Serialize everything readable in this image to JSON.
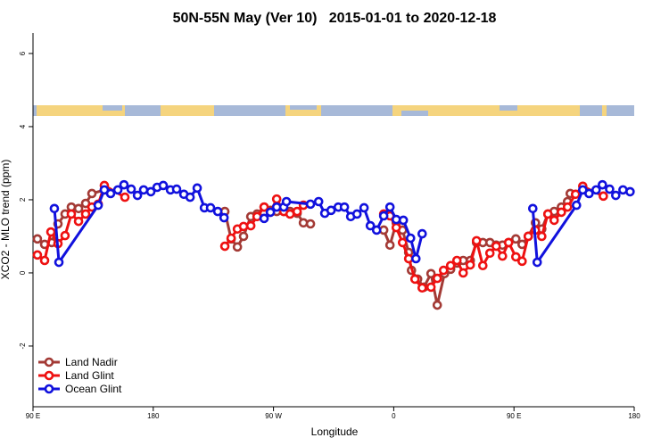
{
  "chart_data": {
    "type": "line",
    "title": "50N-55N May (Ver 10)   2015-01-01 to 2020-12-18",
    "x_label": "Longitude",
    "y_label": "XCO2 - MLO trend (ppm)",
    "xlim": [
      90,
      540
    ],
    "xticks": [
      {
        "value": 90,
        "label": "90 E"
      },
      180,
      {
        "value": 270,
        "label": "90 W"
      },
      {
        "value": 360,
        "label": "0"
      },
      {
        "value": 450,
        "label": "90 E"
      },
      {
        "value": 540,
        "label": "180"
      }
    ],
    "ylim": [
      -3.66,
      6.56
    ],
    "yticks": [
      6,
      4,
      2,
      0,
      -2
    ],
    "legend": "bottom-left",
    "series": [
      {
        "name": "Land Nadir",
        "color": "#a33a35",
        "x": [
          93.3,
          98.7,
          104.0,
          108.7,
          114.0,
          118.7,
          124.1,
          129.4,
          134.1,
          143.4,
          null,
          233.6,
          238.3,
          243.0,
          247.6,
          253.0,
          257.7,
          263.0,
          267.7,
          272.4,
          277.7,
          282.4,
          287.7,
          292.4,
          297.7,
          null,
          352.5,
          357.2,
          361.9,
          366.6,
          371.2,
          373.3,
          377.9,
          382.6,
          387.9,
          392.6,
          398.0,
          402.6,
          407.3,
          412.0,
          417.3,
          422.0,
          426.7,
          432.0,
          436.7,
          441.4,
          446.0,
          451.4,
          456.1,
          460.7,
          466.1,
          470.8,
          475.4,
          480.1,
          485.5,
          490.1,
          492.1
        ],
        "values": [
          0.93,
          0.78,
          0.83,
          1.34,
          1.61,
          1.8,
          1.76,
          1.9,
          2.17,
          2.27,
          null,
          1.68,
          0.93,
          0.71,
          1.0,
          1.54,
          1.61,
          1.8,
          1.71,
          1.68,
          1.68,
          1.68,
          1.63,
          1.37,
          1.34,
          null,
          1.17,
          0.76,
          1.37,
          1.17,
          0.56,
          0.07,
          -0.17,
          -0.39,
          -0.02,
          -0.88,
          -0.02,
          0.1,
          0.27,
          0.34,
          0.34,
          0.83,
          0.83,
          0.83,
          0.76,
          0.76,
          0.83,
          0.93,
          0.78,
          1.0,
          1.37,
          1.2,
          1.61,
          1.68,
          1.8,
          1.95,
          2.17
        ]
      },
      {
        "name": "Land Glint",
        "color": "#ee1111",
        "x": [
          93.3,
          98.7,
          103.4,
          108.7,
          114.0,
          118.7,
          124.1,
          129.4,
          134.1,
          138.8,
          143.4,
          158.8,
          null,
          233.6,
          238.3,
          243.0,
          247.6,
          253.0,
          257.7,
          263.0,
          267.7,
          272.4,
          277.7,
          282.4,
          287.7,
          292.4,
          null,
          352.5,
          357.2,
          361.9,
          366.6,
          371.2,
          375.9,
          381.3,
          387.9,
          392.6,
          397.3,
          402.6,
          407.3,
          412.0,
          417.3,
          422.0,
          426.7,
          432.0,
          436.7,
          441.4,
          446.0,
          451.4,
          456.1,
          460.7,
          466.1,
          470.8,
          475.4,
          480.1,
          485.5,
          490.1,
          496.1,
          501.5,
          516.9
        ],
        "values": [
          0.49,
          0.34,
          1.12,
          0.8,
          1.02,
          1.61,
          1.41,
          1.61,
          1.8,
          1.88,
          2.39,
          2.07,
          null,
          0.73,
          0.95,
          1.2,
          1.27,
          1.29,
          1.54,
          1.8,
          1.66,
          2.02,
          1.68,
          1.61,
          1.68,
          1.85,
          null,
          1.61,
          1.56,
          1.24,
          0.83,
          0.39,
          -0.17,
          -0.41,
          -0.39,
          -0.15,
          0.07,
          0.2,
          0.34,
          0,
          0.22,
          0.88,
          0.2,
          0.54,
          0.73,
          0.46,
          0.83,
          0.44,
          0.32,
          1.0,
          1.17,
          1.0,
          1.61,
          1.44,
          1.66,
          1.8,
          2.15,
          2.37,
          2.1
        ]
      },
      {
        "name": "Ocean Glint",
        "color": "#1111dd",
        "x": [
          106.0,
          109.4,
          138.8,
          143.4,
          148.1,
          153.5,
          158.1,
          163.5,
          168.2,
          172.8,
          178.2,
          182.9,
          187.5,
          192.9,
          197.5,
          202.9,
          207.6,
          212.9,
          218.3,
          222.9,
          228.3,
          233.0,
          null,
          263.0,
          267.7,
          272.4,
          277.7,
          279.7,
          297.7,
          303.8,
          308.4,
          313.1,
          318.5,
          323.1,
          327.8,
          332.5,
          337.8,
          342.5,
          347.2,
          352.5,
          357.2,
          361.9,
          367.2,
          372.6,
          376.6,
          381.3,
          null,
          464.1,
          467.4,
          496.8,
          501.5,
          506.2,
          511.5,
          516.2,
          521.6,
          526.2,
          531.6,
          536.9
        ],
        "values": [
          1.76,
          0.29,
          1.85,
          2.27,
          2.17,
          2.27,
          2.41,
          2.29,
          2.12,
          2.27,
          2.22,
          2.34,
          2.39,
          2.27,
          2.29,
          2.15,
          2.07,
          2.32,
          1.78,
          1.78,
          1.68,
          1.51,
          null,
          1.49,
          1.66,
          1.8,
          1.8,
          1.95,
          1.88,
          1.95,
          1.63,
          1.71,
          1.8,
          1.8,
          1.54,
          1.61,
          1.78,
          1.29,
          1.17,
          1.56,
          1.8,
          1.46,
          1.44,
          0.95,
          0.39,
          1.07,
          null,
          1.76,
          0.29,
          1.85,
          2.27,
          2.17,
          2.27,
          2.41,
          2.29,
          2.12,
          2.27,
          2.22
        ]
      }
    ]
  }
}
